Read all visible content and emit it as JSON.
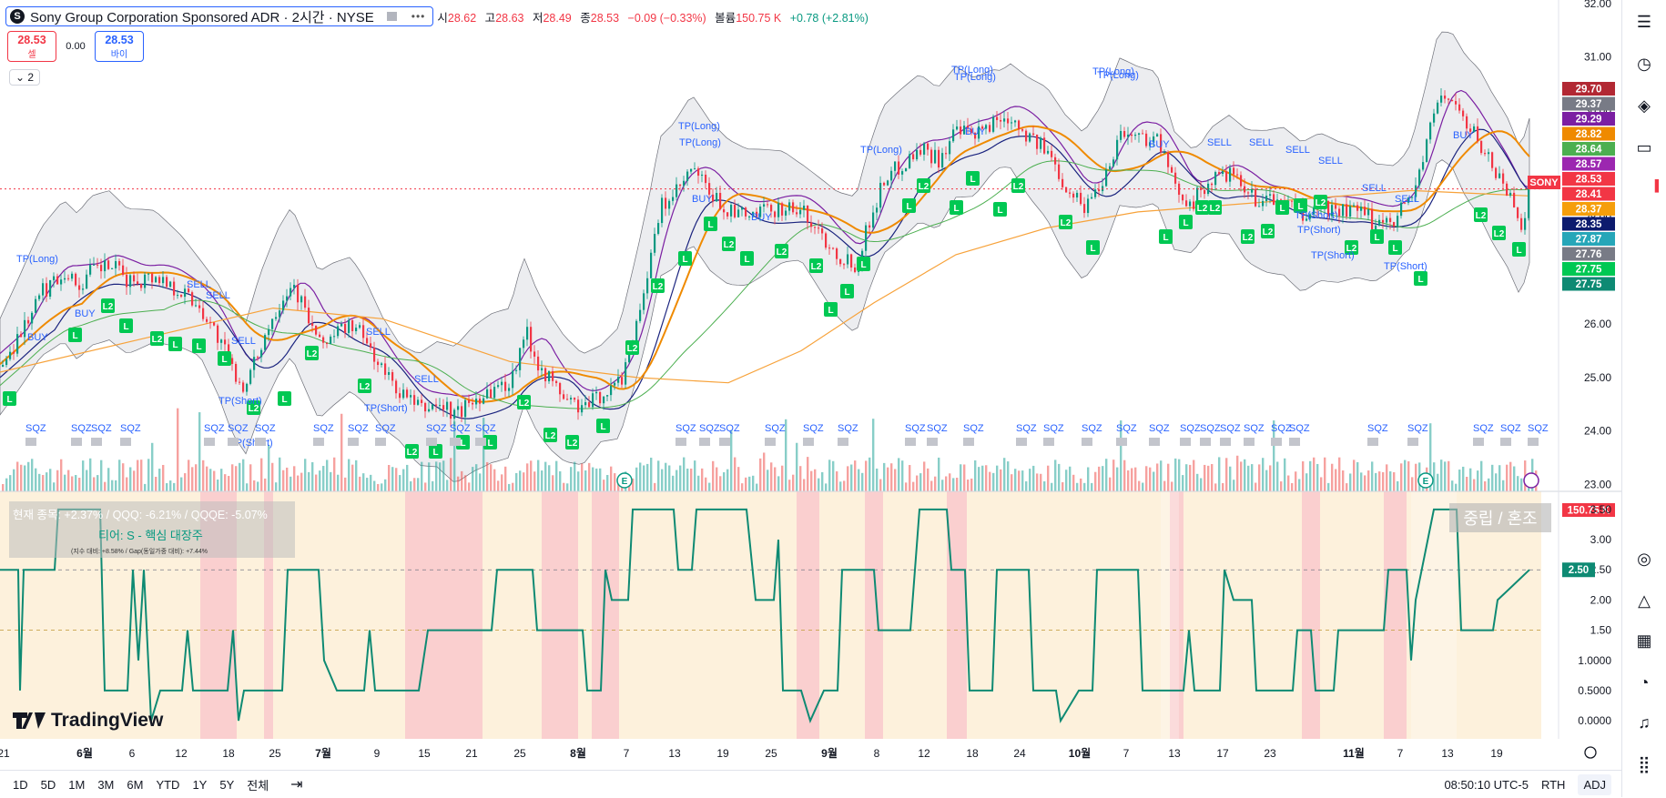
{
  "header": {
    "symbol_title": "Sony Group Corporation Sponsored ADR · 2시간 · NYSE",
    "logo_letter": "S",
    "open_label": "시",
    "open": "28.62",
    "high_label": "고",
    "high": "28.63",
    "low_label": "저",
    "low": "28.49",
    "close_label": "종",
    "close": "28.53",
    "change": "−0.09 (−0.33%)",
    "volume_label": "볼륨",
    "volume": "150.75 K",
    "vol_change": "+0.78 (+2.81%)"
  },
  "trade": {
    "sell_price": "28.53",
    "sell_label": "셀",
    "spread": "0.00",
    "buy_price": "28.53",
    "buy_label": "바이"
  },
  "indicator_toggle": "2",
  "colors": {
    "up": "#089981",
    "down": "#f23645",
    "accent": "#2962ff",
    "green_badge": "#00c853",
    "score_line": "#0e8a73"
  },
  "price_axis": [
    "32.00",
    "31.00",
    "30.00",
    "29.00",
    "28.00",
    "27.00",
    "26.00",
    "25.00",
    "24.00",
    "23.00"
  ],
  "price_tags": [
    {
      "text": "29.70",
      "color": "#b22833"
    },
    {
      "text": "29.37",
      "color": "#787b86"
    },
    {
      "text": "29.29",
      "color": "#7b1fa2"
    },
    {
      "text": "28.82",
      "color": "#ef8a00"
    },
    {
      "text": "28.64",
      "color": "#4caf50"
    },
    {
      "text": "28.57",
      "color": "#9c27b0"
    },
    {
      "text": "28.53",
      "color": "#f23645"
    },
    {
      "text": "28.41",
      "color": "#f23645"
    },
    {
      "text": "28.37",
      "color": "#f59e0b"
    },
    {
      "text": "28.35",
      "color": "#0d1b6e"
    },
    {
      "text": "27.87",
      "color": "#26a6b8"
    },
    {
      "text": "27.76",
      "color": "#787b86"
    },
    {
      "text": "27.75",
      "color": "#00c853"
    },
    {
      "text": "27.75",
      "color": "#0e8a73"
    },
    {
      "text": "150.75 K",
      "color": "#f23645"
    }
  ],
  "symbol_tag": "SONY",
  "osc_axis": [
    "3.50",
    "3.00",
    "2.50",
    "2.00",
    "1.50",
    "1.0000",
    "0.5000",
    "0.0000"
  ],
  "osc_value_tag": "2.50",
  "info_panel": {
    "line1": "현재 종목: +2.37% / QQQ: -6.21% / QQQE: -5.07%",
    "line2": "티어: S - 핵심 대장주",
    "line3": "(지수 대비: +8.58% / Gap(동일가중 대비): +7.44%"
  },
  "regime_label": "중립 / 혼조",
  "time_axis": [
    "21",
    "6월",
    "6",
    "12",
    "18",
    "25",
    "7월",
    "9",
    "15",
    "21",
    "25",
    "8월",
    "7",
    "13",
    "19",
    "25",
    "9월",
    "8",
    "12",
    "18",
    "24",
    "10월",
    "7",
    "13",
    "17",
    "23",
    "11월",
    "7",
    "13",
    "19"
  ],
  "signals": {
    "tp_long": "TP(Long)",
    "tp_short": "TP(Short)",
    "buy": "BUY",
    "sell": "SELL",
    "squeeze": "SQZ",
    "long": "L",
    "long2": "L2",
    "earnings": "E"
  },
  "chart_data": [
    {
      "type": "candlestick",
      "title": "Sony Group Corporation Sponsored ADR · 2시간 · NYSE",
      "ylim": [
        22.8,
        32.0
      ],
      "x_ticks": [
        "21",
        "6월",
        "6",
        "12",
        "18",
        "25",
        "7월",
        "9",
        "15",
        "21",
        "25",
        "8월",
        "7",
        "13",
        "19",
        "25",
        "9월",
        "8",
        "12",
        "18",
        "24",
        "10월",
        "7",
        "13",
        "17",
        "23",
        "11월",
        "7",
        "13",
        "19"
      ],
      "close_path": [
        [
          0,
          25.2
        ],
        [
          20,
          25.8
        ],
        [
          45,
          26.6
        ],
        [
          70,
          27.0
        ],
        [
          85,
          26.7
        ],
        [
          100,
          27.0
        ],
        [
          120,
          27.1
        ],
        [
          140,
          26.8
        ],
        [
          170,
          26.9
        ],
        [
          200,
          26.6
        ],
        [
          220,
          26.3
        ],
        [
          240,
          25.7
        ],
        [
          255,
          25.1
        ],
        [
          270,
          24.8
        ],
        [
          285,
          25.6
        ],
        [
          305,
          26.4
        ],
        [
          320,
          26.8
        ],
        [
          335,
          26.2
        ],
        [
          350,
          25.6
        ],
        [
          365,
          25.8
        ],
        [
          385,
          26.0
        ],
        [
          400,
          25.7
        ],
        [
          420,
          25.1
        ],
        [
          440,
          24.7
        ],
        [
          460,
          24.4
        ],
        [
          480,
          24.5
        ],
        [
          500,
          24.3
        ],
        [
          520,
          24.6
        ],
        [
          540,
          24.8
        ],
        [
          560,
          24.9
        ],
        [
          575,
          25.9
        ],
        [
          590,
          25.3
        ],
        [
          605,
          24.9
        ],
        [
          620,
          24.6
        ],
        [
          640,
          24.4
        ],
        [
          660,
          24.7
        ],
        [
          680,
          24.9
        ],
        [
          700,
          26.2
        ],
        [
          715,
          27.3
        ],
        [
          725,
          28.2
        ],
        [
          740,
          28.4
        ],
        [
          760,
          28.9
        ],
        [
          780,
          28.4
        ],
        [
          800,
          28.1
        ],
        [
          820,
          28.0
        ],
        [
          840,
          28.1
        ],
        [
          860,
          28.2
        ],
        [
          880,
          28.1
        ],
        [
          900,
          27.7
        ],
        [
          920,
          27.3
        ],
        [
          940,
          27.1
        ],
        [
          955,
          28.0
        ],
        [
          970,
          28.7
        ],
        [
          990,
          29.0
        ],
        [
          1010,
          29.3
        ],
        [
          1030,
          29.1
        ],
        [
          1050,
          29.6
        ],
        [
          1070,
          29.5
        ],
        [
          1090,
          29.8
        ],
        [
          1110,
          29.9
        ],
        [
          1130,
          29.5
        ],
        [
          1150,
          29.2
        ],
        [
          1170,
          28.6
        ],
        [
          1190,
          28.2
        ],
        [
          1210,
          28.7
        ],
        [
          1230,
          29.6
        ],
        [
          1250,
          29.5
        ],
        [
          1270,
          29.5
        ],
        [
          1290,
          28.5
        ],
        [
          1310,
          28.3
        ],
        [
          1330,
          28.7
        ],
        [
          1350,
          28.8
        ],
        [
          1370,
          28.4
        ],
        [
          1390,
          28.3
        ],
        [
          1410,
          28.3
        ],
        [
          1430,
          28.0
        ],
        [
          1450,
          28.2
        ],
        [
          1470,
          28.1
        ],
        [
          1490,
          28.1
        ],
        [
          1510,
          27.9
        ],
        [
          1530,
          28.0
        ],
        [
          1550,
          28.4
        ],
        [
          1565,
          29.3
        ],
        [
          1580,
          30.3
        ],
        [
          1595,
          30.2
        ],
        [
          1610,
          29.7
        ],
        [
          1625,
          29.4
        ],
        [
          1640,
          28.9
        ],
        [
          1655,
          28.5
        ],
        [
          1670,
          27.9
        ],
        [
          1680,
          28.5
        ]
      ],
      "volume_ylabel_last": "150.75 K",
      "last_close": 28.53
    },
    {
      "type": "line",
      "series": [
        {
          "values_path": [
            [
              0,
              2.5
            ],
            [
              20,
              2.5
            ],
            [
              22,
              0.5
            ],
            [
              26,
              2.5
            ],
            [
              60,
              2.5
            ],
            [
              64,
              3.5
            ],
            [
              110,
              3.5
            ],
            [
              115,
              0.5
            ],
            [
              140,
              0.5
            ],
            [
              146,
              2.5
            ],
            [
              152,
              1.0
            ],
            [
              158,
              2.5
            ],
            [
              166,
              0.0
            ],
            [
              176,
              0.5
            ],
            [
              200,
              0.5
            ],
            [
              206,
              1.5
            ],
            [
              212,
              0.5
            ],
            [
              250,
              0.5
            ],
            [
              256,
              1.5
            ],
            [
              262,
              0.0
            ],
            [
              268,
              0.5
            ],
            [
              310,
              0.5
            ],
            [
              316,
              2.5
            ],
            [
              350,
              2.5
            ],
            [
              356,
              1.0
            ],
            [
              370,
              0.5
            ],
            [
              400,
              0.5
            ],
            [
              406,
              1.5
            ],
            [
              412,
              0.5
            ],
            [
              460,
              0.5
            ],
            [
              465,
              1.0
            ],
            [
              470,
              1.5
            ],
            [
              540,
              1.5
            ],
            [
              546,
              2.5
            ],
            [
              585,
              2.5
            ],
            [
              590,
              1.5
            ],
            [
              640,
              1.5
            ],
            [
              645,
              0.5
            ],
            [
              660,
              0.5
            ],
            [
              665,
              2.5
            ],
            [
              672,
              2.0
            ],
            [
              690,
              2.0
            ],
            [
              695,
              3.5
            ],
            [
              740,
              3.5
            ],
            [
              745,
              2.5
            ],
            [
              760,
              2.5
            ],
            [
              765,
              3.5
            ],
            [
              820,
              3.5
            ],
            [
              830,
              2.0
            ],
            [
              850,
              2.0
            ],
            [
              855,
              3.0
            ],
            [
              860,
              0.5
            ],
            [
              880,
              0.5
            ],
            [
              890,
              0.0
            ],
            [
              905,
              0.5
            ],
            [
              920,
              0.5
            ],
            [
              925,
              2.5
            ],
            [
              960,
              2.5
            ],
            [
              965,
              1.5
            ],
            [
              1000,
              1.5
            ],
            [
              1010,
              3.5
            ],
            [
              1040,
              3.5
            ],
            [
              1045,
              2.5
            ],
            [
              1060,
              2.5
            ],
            [
              1065,
              0.5
            ],
            [
              1090,
              0.5
            ],
            [
              1095,
              2.5
            ],
            [
              1130,
              2.5
            ],
            [
              1135,
              0.5
            ],
            [
              1160,
              0.5
            ],
            [
              1165,
              0.0
            ],
            [
              1185,
              0.5
            ],
            [
              1200,
              0.5
            ],
            [
              1205,
              2.5
            ],
            [
              1250,
              2.5
            ],
            [
              1255,
              0.5
            ],
            [
              1300,
              0.5
            ],
            [
              1306,
              1.5
            ],
            [
              1312,
              0.5
            ],
            [
              1340,
              0.5
            ],
            [
              1345,
              2.5
            ],
            [
              1355,
              2.0
            ],
            [
              1375,
              2.0
            ],
            [
              1380,
              0.5
            ],
            [
              1420,
              0.5
            ],
            [
              1425,
              1.5
            ],
            [
              1440,
              1.5
            ],
            [
              1445,
              0.5
            ],
            [
              1465,
              0.5
            ],
            [
              1470,
              1.5
            ],
            [
              1520,
              1.5
            ],
            [
              1525,
              2.5
            ],
            [
              1545,
              2.5
            ],
            [
              1550,
              1.0
            ],
            [
              1555,
              2.0
            ],
            [
              1575,
              3.5
            ],
            [
              1600,
              3.5
            ],
            [
              1605,
              1.5
            ],
            [
              1640,
              1.5
            ],
            [
              1645,
              2.0
            ],
            [
              1680,
              2.5
            ]
          ]
        }
      ],
      "ylim": [
        -0.3,
        3.8
      ],
      "last_value": 2.5
    }
  ]
}
